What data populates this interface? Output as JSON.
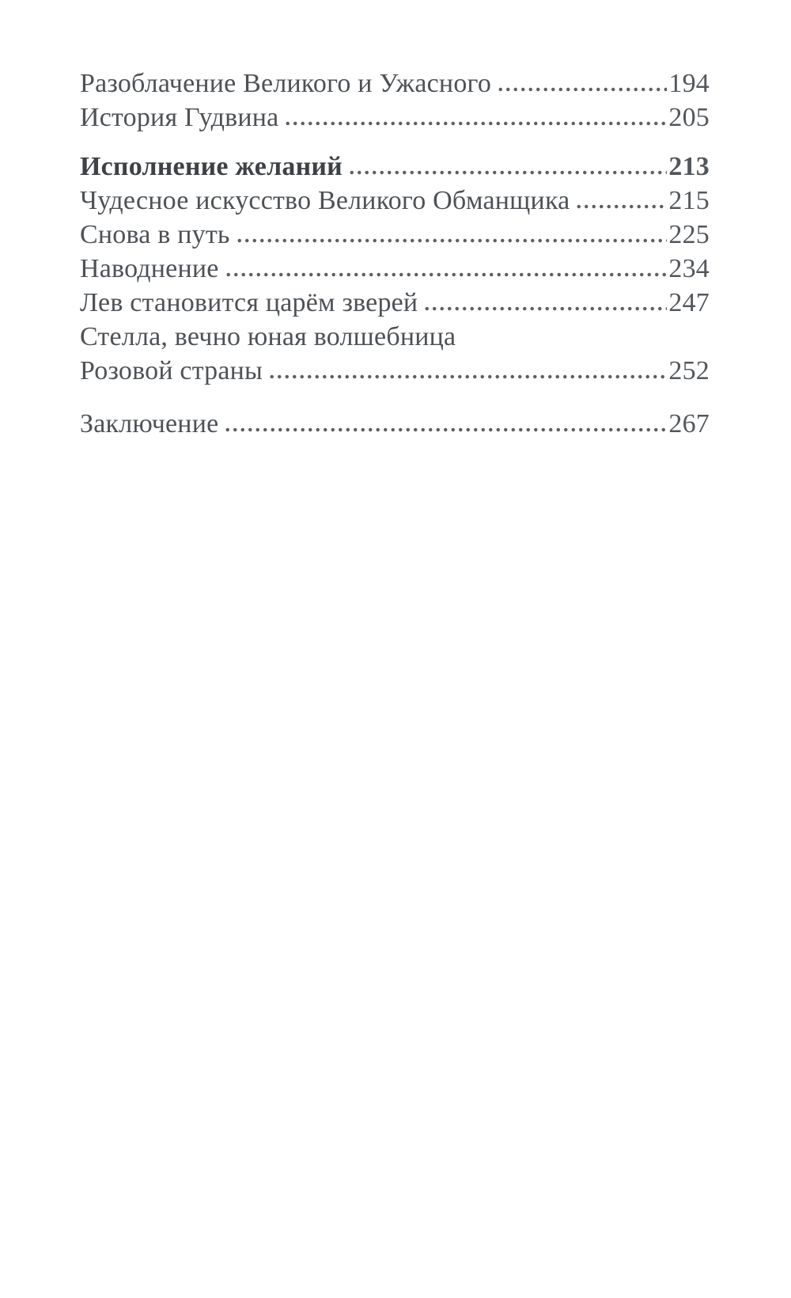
{
  "page": {
    "background_color": "#ffffff",
    "text_color": "#4e5256",
    "section_color": "#3e4246"
  },
  "toc": {
    "entries": [
      {
        "title": "Разоблачение Великого и Ужасного",
        "page": "194",
        "style": "normal"
      },
      {
        "title": "История Гудвина",
        "page": "205",
        "style": "normal"
      },
      {
        "title": "Исполнение желаний",
        "page": "213",
        "style": "section-bold"
      },
      {
        "title": "Чудесное искусство Великого Обманщика",
        "page": "215",
        "style": "normal"
      },
      {
        "title": "Снова в путь",
        "page": "225",
        "style": "normal"
      },
      {
        "title": "Наводнение",
        "page": "234",
        "style": "normal"
      },
      {
        "title": "Лев становится царём зверей",
        "page": "247",
        "style": "normal"
      },
      {
        "title": "Стелла, вечно юная волшебница",
        "page": "",
        "style": "normal-wrap-first-line"
      },
      {
        "title": "Розовой страны",
        "page": "252",
        "style": "normal-wrap-second-line"
      },
      {
        "title": "Заключение",
        "page": "267",
        "style": "normal"
      }
    ]
  }
}
